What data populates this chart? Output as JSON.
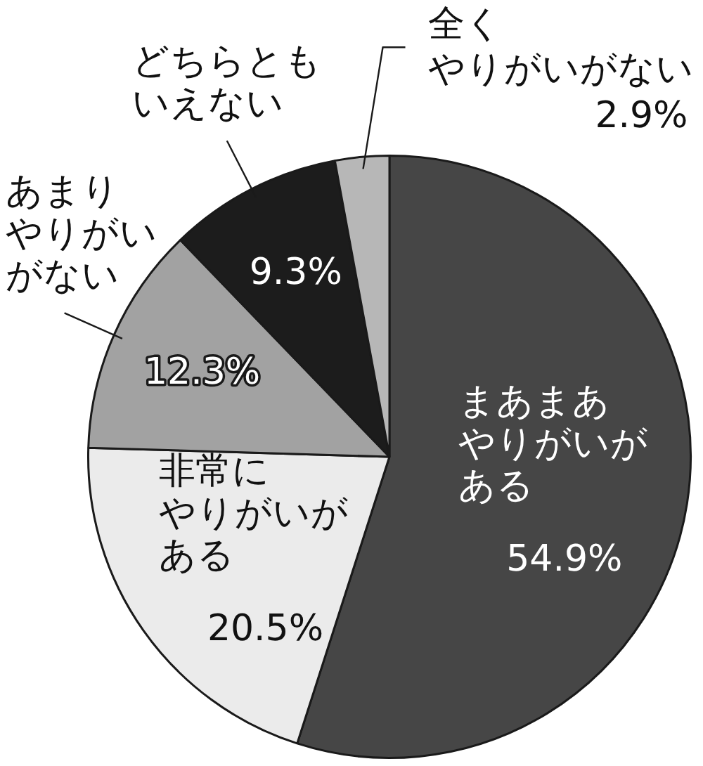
{
  "chart_data": {
    "type": "pie",
    "categories": [
      "まあまあやりがいがある",
      "非常にやりがいがある",
      "あまりやりがいがない",
      "どちらともいえない",
      "全くやりがいがない"
    ],
    "values": [
      54.9,
      20.5,
      12.3,
      9.3,
      2.9
    ],
    "value_labels": [
      "54.9%",
      "20.5%",
      "12.3%",
      "9.3%",
      "2.9%"
    ],
    "colors": [
      "#464646",
      "#ebebeb",
      "#a2a2a2",
      "#1c1c1c",
      "#b7b7b7"
    ]
  }
}
